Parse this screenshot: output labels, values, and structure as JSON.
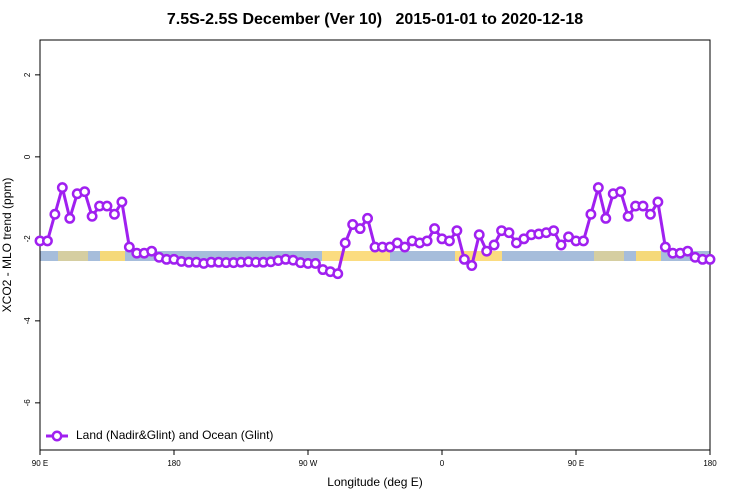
{
  "chart_data": {
    "type": "line",
    "title": "7.5S-2.5S December (Ver 10)   2015-01-01 to 2020-12-18",
    "x_label": "Longitude (deg E)",
    "y_label": "XCO2 - MLO trend (ppm)",
    "x": [
      90,
      95,
      100,
      105,
      110,
      115,
      120,
      125,
      130,
      135,
      140,
      145,
      150,
      155,
      160,
      165,
      170,
      175,
      180,
      185,
      190,
      195,
      200,
      205,
      210,
      215,
      220,
      225,
      230,
      235,
      240,
      245,
      250,
      255,
      260,
      265,
      270,
      275,
      280,
      285,
      290,
      295,
      300,
      305,
      310,
      315,
      320,
      325,
      330,
      335,
      340,
      345,
      350,
      355,
      360,
      365,
      370,
      375,
      380,
      385,
      390,
      395,
      400,
      405,
      410,
      415,
      420,
      425,
      430,
      435,
      440,
      445,
      450,
      455,
      460,
      465,
      470,
      475,
      480,
      485,
      490,
      495,
      500,
      505,
      510,
      515,
      520,
      525,
      530,
      535,
      540
    ],
    "series": [
      {
        "name": "Land (Nadir&Glint) and Ocean (Glint)",
        "color": "#a020f0",
        "values": [
          -2.05,
          -2.05,
          -1.4,
          -0.75,
          -1.5,
          -0.9,
          -0.85,
          -1.45,
          -1.2,
          -1.2,
          -1.4,
          -1.1,
          -2.2,
          -2.35,
          -2.35,
          -2.3,
          -2.45,
          -2.5,
          -2.5,
          -2.55,
          -2.57,
          -2.57,
          -2.6,
          -2.57,
          -2.57,
          -2.58,
          -2.58,
          -2.57,
          -2.56,
          -2.57,
          -2.57,
          -2.56,
          -2.53,
          -2.5,
          -2.52,
          -2.58,
          -2.6,
          -2.6,
          -2.75,
          -2.8,
          -2.85,
          -2.1,
          -1.65,
          -1.75,
          -1.5,
          -2.2,
          -2.2,
          -2.2,
          -2.1,
          -2.2,
          -2.05,
          -2.1,
          -2.05,
          -1.75,
          -2.0,
          -2.05,
          -1.8,
          -2.5,
          -2.65,
          -1.9,
          -2.3,
          -2.15,
          -1.8,
          -1.85,
          -2.1,
          -2.0,
          -1.9,
          -1.88,
          -1.85,
          -1.8,
          -2.15,
          -1.95,
          -2.05,
          -2.05,
          -1.4,
          -0.75,
          -1.5,
          -0.9,
          -0.85,
          -1.45,
          -1.2,
          -1.2,
          -1.4,
          -1.1,
          -2.2,
          -2.35,
          -2.35,
          -2.3,
          -2.45,
          -2.5,
          -2.5
        ]
      }
    ],
    "xlim": [
      90,
      540
    ],
    "xticks": [
      {
        "value": 90,
        "label": "90 E"
      },
      180,
      {
        "value": 270,
        "label": "90 W"
      },
      {
        "value": 360,
        "label": "0"
      },
      {
        "value": 450,
        "label": "90 E"
      },
      {
        "value": 540,
        "label": "180"
      }
    ],
    "ylim": [
      -7.15,
      2.85
    ],
    "yticks": [
      -6,
      -4,
      -2,
      0,
      2
    ],
    "legend": "bottom-left"
  }
}
